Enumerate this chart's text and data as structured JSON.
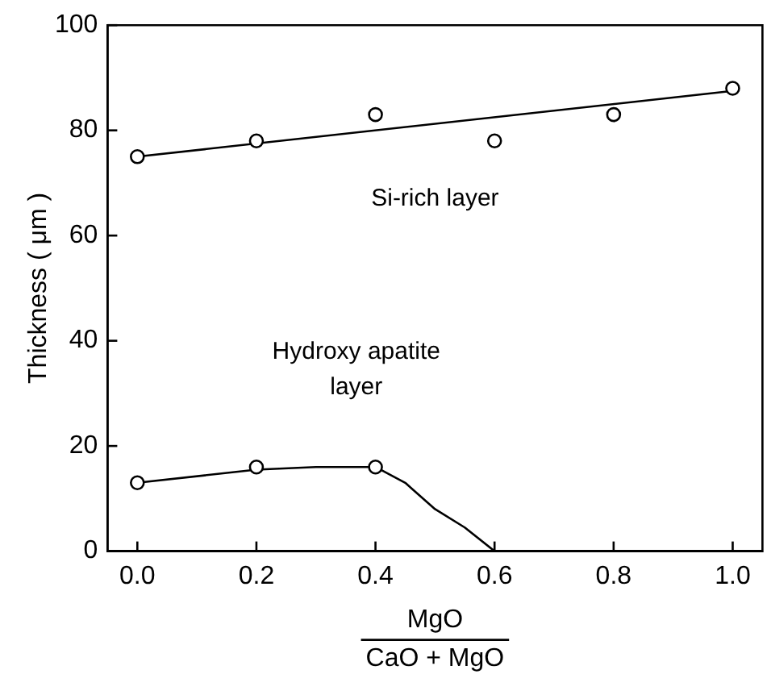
{
  "chart_data": {
    "type": "scatter",
    "xlabel": "MgO CaO + MgO",
    "ylabel": "Thickness ( μm )",
    "xlim": [
      -0.05,
      1.05
    ],
    "ylim": [
      0,
      100
    ],
    "xticks": [
      {
        "value": 0,
        "label": "0.0"
      },
      {
        "value": 0.2,
        "label": "0.2"
      },
      {
        "value": 0.4,
        "label": "0.4"
      },
      {
        "value": 0.6,
        "label": "0.6"
      },
      {
        "value": 0.8,
        "label": "0.8"
      },
      {
        "value": 1,
        "label": "1.0"
      }
    ],
    "yticks": [
      0,
      20,
      40,
      60,
      80,
      100
    ],
    "grid": false,
    "legend": false,
    "series": [
      {
        "marker": "circle",
        "color": "#000000",
        "x": [
          0,
          0.2,
          0.4,
          0.6,
          0.8,
          1.0
        ],
        "values": [
          75,
          78,
          83,
          78,
          83,
          88
        ]
      },
      {
        "type": "line",
        "name": "Si-rich layer",
        "marker": "none",
        "color": "#000000",
        "x": [
          0,
          1
        ],
        "values": [
          75,
          87.5
        ]
      },
      {
        "marker": "circle",
        "color": "#000000",
        "x": [
          0,
          0.2,
          0.4
        ],
        "values": [
          13,
          16,
          16
        ]
      },
      {
        "type": "line",
        "name": "Hydroxy apatite layer",
        "marker": "none",
        "color": "#000000",
        "x": [
          0,
          0.2,
          0.3,
          0.4,
          0.45,
          0.5,
          0.55,
          0.6
        ],
        "values": [
          13,
          15.5,
          16,
          16,
          13,
          8,
          4.5,
          0
        ]
      }
    ]
  }
}
